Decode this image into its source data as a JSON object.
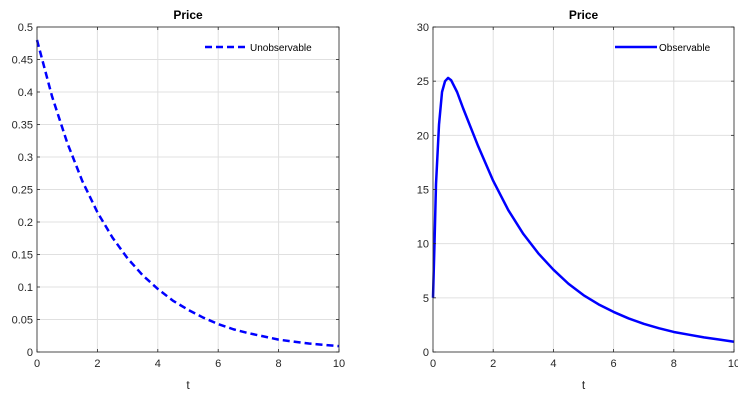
{
  "chart_data": [
    {
      "type": "line",
      "title": "Price",
      "xlabel": "t",
      "ylabel": "",
      "xlim": [
        0,
        10
      ],
      "ylim": [
        0,
        0.5
      ],
      "xticks": [
        "0",
        "2",
        "4",
        "6",
        "8",
        "10"
      ],
      "yticks": [
        "0",
        "0.05",
        "0.1",
        "0.15",
        "0.2",
        "0.25",
        "0.3",
        "0.35",
        "0.4",
        "0.45",
        "0.5"
      ],
      "grid": true,
      "legend_position": "top-right",
      "series": [
        {
          "name": "Unobservable",
          "color": "#0000ff",
          "style": "dashed",
          "x": [
            0,
            0.5,
            1,
            1.5,
            2,
            2.5,
            3,
            3.5,
            4,
            4.5,
            5,
            5.5,
            6,
            6.5,
            7,
            7.5,
            8,
            8.5,
            9,
            9.5,
            10
          ],
          "y": [
            0.48,
            0.393,
            0.322,
            0.263,
            0.215,
            0.176,
            0.144,
            0.118,
            0.097,
            0.079,
            0.065,
            0.053,
            0.043,
            0.035,
            0.029,
            0.024,
            0.019,
            0.016,
            0.013,
            0.011,
            0.009
          ]
        }
      ]
    },
    {
      "type": "line",
      "title": "Price",
      "xlabel": "t",
      "ylabel": "",
      "xlim": [
        0,
        10
      ],
      "ylim": [
        0,
        30
      ],
      "xticks": [
        "0",
        "2",
        "4",
        "6",
        "8",
        "10"
      ],
      "yticks": [
        "0",
        "5",
        "10",
        "15",
        "20",
        "25",
        "30"
      ],
      "grid": true,
      "legend_position": "top-right",
      "series": [
        {
          "name": "Observable",
          "color": "#0000ff",
          "style": "solid",
          "x": [
            0,
            0.05,
            0.1,
            0.2,
            0.3,
            0.4,
            0.5,
            0.6,
            0.8,
            1,
            1.5,
            2,
            2.5,
            3,
            3.5,
            4,
            4.5,
            5,
            5.5,
            6,
            6.5,
            7,
            7.5,
            8,
            8.5,
            9,
            9.5,
            10
          ],
          "y": [
            5,
            10,
            15.5,
            21,
            24,
            25,
            25.3,
            25.1,
            24,
            22.5,
            19,
            15.8,
            13.1,
            10.9,
            9.1,
            7.6,
            6.3,
            5.25,
            4.4,
            3.7,
            3.1,
            2.6,
            2.2,
            1.85,
            1.6,
            1.35,
            1.15,
            0.95
          ]
        }
      ]
    }
  ]
}
